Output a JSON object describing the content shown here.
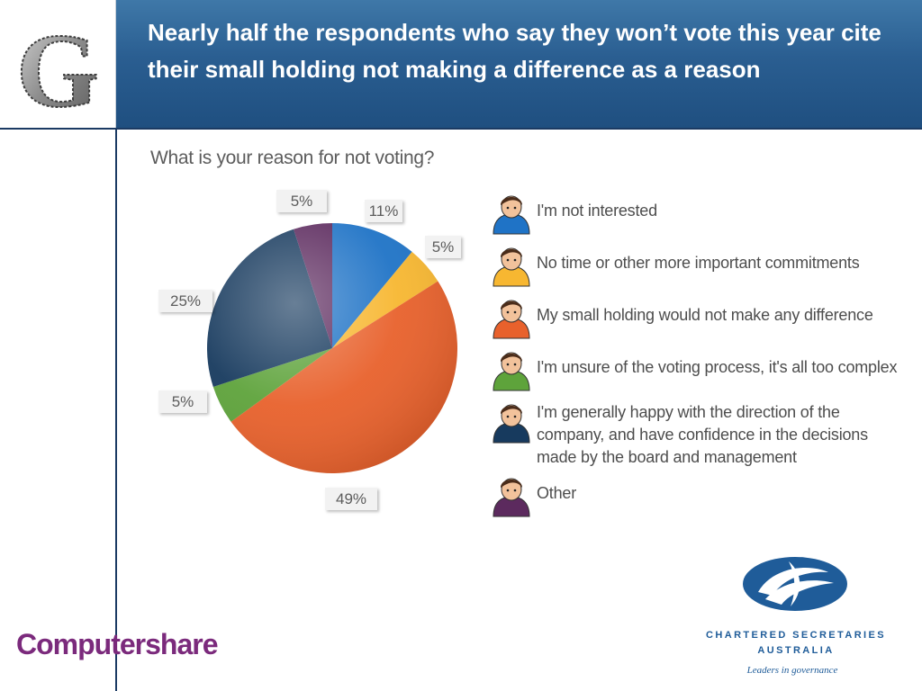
{
  "header": {
    "title": "Nearly half the respondents who say they won’t vote this year cite their small holding not making a difference as a reason",
    "logo_letter": "G"
  },
  "chart_data": {
    "type": "pie",
    "title": "What is your reason for not voting?",
    "slices": [
      {
        "label": "I'm not interested",
        "value": 11,
        "display": "11%",
        "color": "#1f73c6"
      },
      {
        "label": "No time or other more important commitments",
        "value": 5,
        "display": "5%",
        "color": "#f7b731"
      },
      {
        "label": "My small holding would not make any difference",
        "value": 49,
        "display": "49%",
        "color": "#e8612c"
      },
      {
        "label": "I'm unsure of the voting process, it's all too complex",
        "value": 5,
        "display": "5%",
        "color": "#5ea33b"
      },
      {
        "label": "I'm generally happy with the direction of the company, and have confidence in the decisions made by the board and management",
        "value": 25,
        "display": "25%",
        "color": "#173a5e"
      },
      {
        "label": "Other",
        "value": 5,
        "display": "5%",
        "color": "#5c2a5e"
      }
    ],
    "legend_position": "right"
  },
  "footer": {
    "left_brand": "Computershare",
    "right_brand_line1": "CHARTERED SECRETARIES",
    "right_brand_line2": "AUSTRALIA",
    "right_brand_tagline": "Leaders in governance"
  }
}
